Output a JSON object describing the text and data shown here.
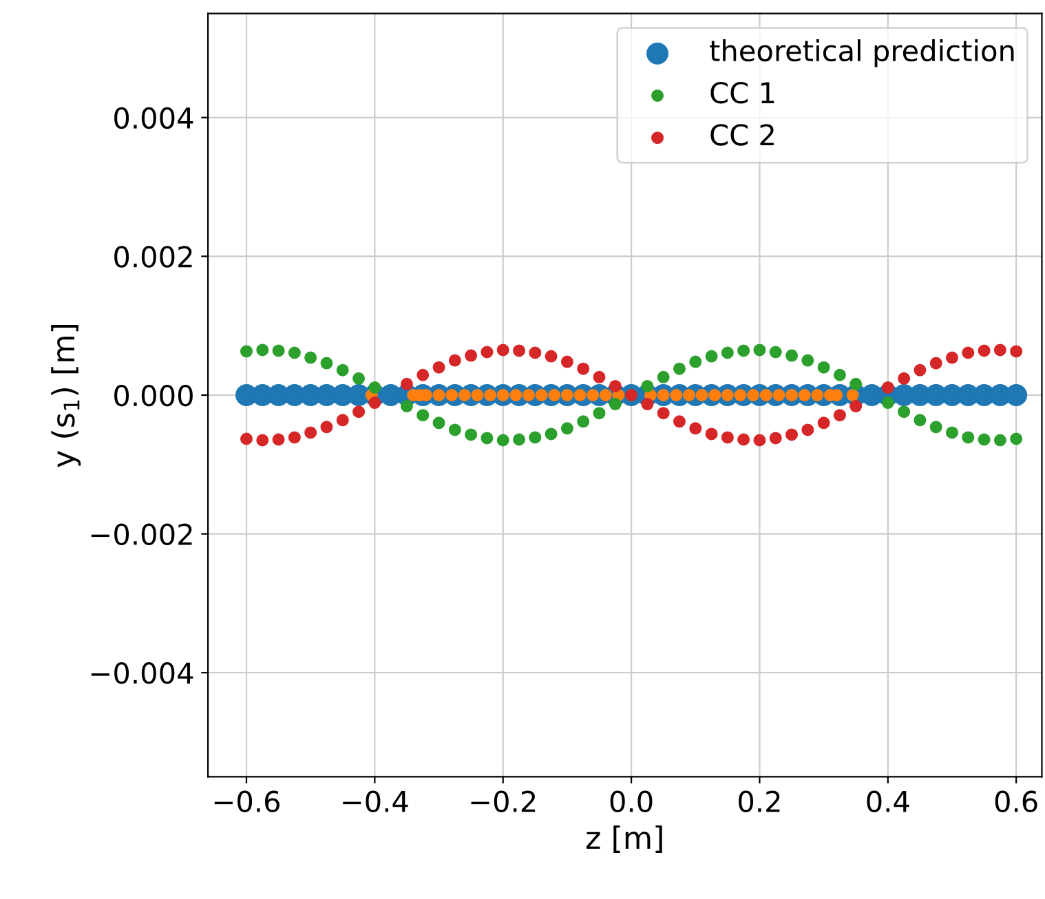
{
  "chart_data": {
    "type": "scatter",
    "xlabel": "z [m]",
    "ylabel": "y (s$_{1}$) [m]",
    "xlim": [
      -0.66,
      0.64
    ],
    "ylim": [
      -0.0055,
      0.0055
    ],
    "xticks": [
      {
        "value": -0.6,
        "label": "−0.6"
      },
      {
        "value": -0.4,
        "label": "−0.4"
      },
      {
        "value": -0.2,
        "label": "−0.2"
      },
      {
        "value": 0.0,
        "label": "0.0"
      },
      0.2,
      0.4,
      0.6
    ],
    "yticks": [
      {
        "value": -0.004,
        "label": "−0.004"
      },
      {
        "value": -0.002,
        "label": "−0.002"
      },
      {
        "value": 0.0,
        "label": "0.000"
      },
      0.002,
      0.004
    ],
    "grid": true,
    "legend": "top right",
    "marker": "circle",
    "x": [
      -0.6,
      -0.575,
      -0.55,
      -0.525,
      -0.5,
      -0.475,
      -0.45,
      -0.425,
      -0.4,
      -0.375,
      -0.35,
      -0.325,
      -0.3,
      -0.275,
      -0.25,
      -0.225,
      -0.2,
      -0.175,
      -0.15,
      -0.125,
      -0.1,
      -0.075,
      -0.05,
      -0.025,
      0,
      0.025,
      0.05,
      0.075,
      0.1,
      0.125,
      0.15,
      0.175,
      0.2,
      0.225,
      0.25,
      0.275,
      0.3,
      0.325,
      0.35,
      0.375,
      0.4,
      0.425,
      0.45,
      0.475,
      0.5,
      0.525,
      0.55,
      0.575,
      0.6
    ],
    "series": [
      {
        "name": "theoretical prediction",
        "color": "#1f77b4",
        "values": [
          0,
          0,
          0,
          0,
          0,
          0,
          0,
          0,
          0,
          0,
          0,
          0,
          0,
          0,
          0,
          0,
          0,
          0,
          0,
          0,
          0,
          0,
          0,
          0,
          0,
          0,
          0,
          0,
          0,
          0,
          0,
          0,
          0,
          0,
          0,
          0,
          0,
          0,
          0,
          0,
          0,
          0,
          0,
          0,
          0,
          0,
          0,
          0,
          0
        ]
      },
      {
        "color": "#ff7f0e",
        "x": [
          -0.405,
          -0.34,
          -0.33,
          -0.32,
          -0.3,
          -0.28,
          -0.26,
          -0.24,
          -0.22,
          -0.2,
          -0.18,
          -0.16,
          -0.14,
          -0.12,
          -0.1,
          -0.08,
          -0.06,
          -0.04,
          -0.02,
          0.03,
          0.05,
          0.07,
          0.09,
          0.11,
          0.13,
          0.15,
          0.17,
          0.19,
          0.21,
          0.23,
          0.25,
          0.27,
          0.29,
          0.31,
          0.32,
          0.345
        ],
        "values": [
          0,
          0,
          0,
          0,
          0,
          0,
          0,
          0,
          0,
          0,
          0,
          0,
          0,
          0,
          0,
          0,
          0,
          0,
          0,
          0,
          0,
          0,
          0,
          0,
          0,
          0,
          0,
          0,
          0,
          0,
          0,
          0,
          0,
          0,
          0,
          0
        ]
      },
      {
        "name": "CC 1",
        "color": "#2ca02c",
        "values": [
          0.00063,
          0.00065,
          0.00064,
          0.00061,
          0.00054,
          0.00046,
          0.00036,
          0.00024,
          0.00011,
          null,
          -0.00016,
          -0.00029,
          -0.0004,
          -0.0005,
          -0.00057,
          -0.00062,
          -0.00065,
          -0.00064,
          -0.00061,
          -0.00056,
          -0.00048,
          -0.00038,
          -0.00026,
          -0.00013,
          0,
          0.00013,
          0.00026,
          0.00038,
          0.00048,
          0.00056,
          0.00061,
          0.00064,
          0.00065,
          0.00062,
          0.00057,
          0.0005,
          0.0004,
          0.00029,
          0.00016,
          null,
          -0.00011,
          -0.00024,
          -0.00036,
          -0.00046,
          -0.00054,
          -0.00061,
          -0.00064,
          -0.00065,
          -0.00063
        ]
      },
      {
        "name": "CC 2",
        "color": "#d62728",
        "values": [
          -0.00063,
          -0.00065,
          -0.00064,
          -0.00061,
          -0.00054,
          -0.00046,
          -0.00036,
          -0.00024,
          -0.00011,
          null,
          0.00016,
          0.00029,
          0.0004,
          0.0005,
          0.00057,
          0.00062,
          0.00065,
          0.00064,
          0.00061,
          0.00056,
          0.00048,
          0.00038,
          0.00026,
          0.00013,
          0,
          -0.00013,
          -0.00026,
          -0.00038,
          -0.00048,
          -0.00056,
          -0.00061,
          -0.00064,
          -0.00065,
          -0.00062,
          -0.00057,
          -0.0005,
          -0.0004,
          -0.00029,
          -0.00016,
          null,
          0.00011,
          0.00024,
          0.00036,
          0.00046,
          0.00054,
          0.00061,
          0.00064,
          0.00065,
          0.00063
        ]
      }
    ]
  }
}
